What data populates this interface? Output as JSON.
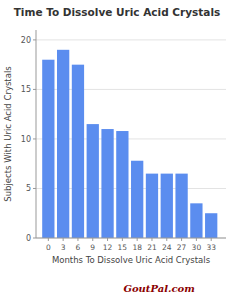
{
  "chart_data": {
    "type": "bar",
    "title": "Time To Dissolve Uric Acid Crystals",
    "xlabel": "Months To Dissolve Uric Acid Crystals",
    "ylabel": "Subjects With Uric Acid Crystals",
    "x": [
      0,
      3,
      6,
      9,
      12,
      15,
      18,
      21,
      24,
      27,
      30,
      33
    ],
    "values": [
      18.0,
      19.0,
      17.5,
      11.5,
      11.0,
      10.8,
      7.8,
      6.5,
      6.5,
      6.5,
      3.5,
      2.5
    ],
    "color": "#5b8def",
    "xlim": [
      -2.5,
      36
    ],
    "xticks": [
      0,
      3,
      6,
      9,
      12,
      15,
      18,
      21,
      24,
      27,
      30,
      33
    ],
    "ylim": [
      0,
      21
    ],
    "yticks": [
      0,
      5,
      10,
      15,
      20
    ],
    "grid": true,
    "annotations": [
      "GoutPal.com"
    ]
  }
}
